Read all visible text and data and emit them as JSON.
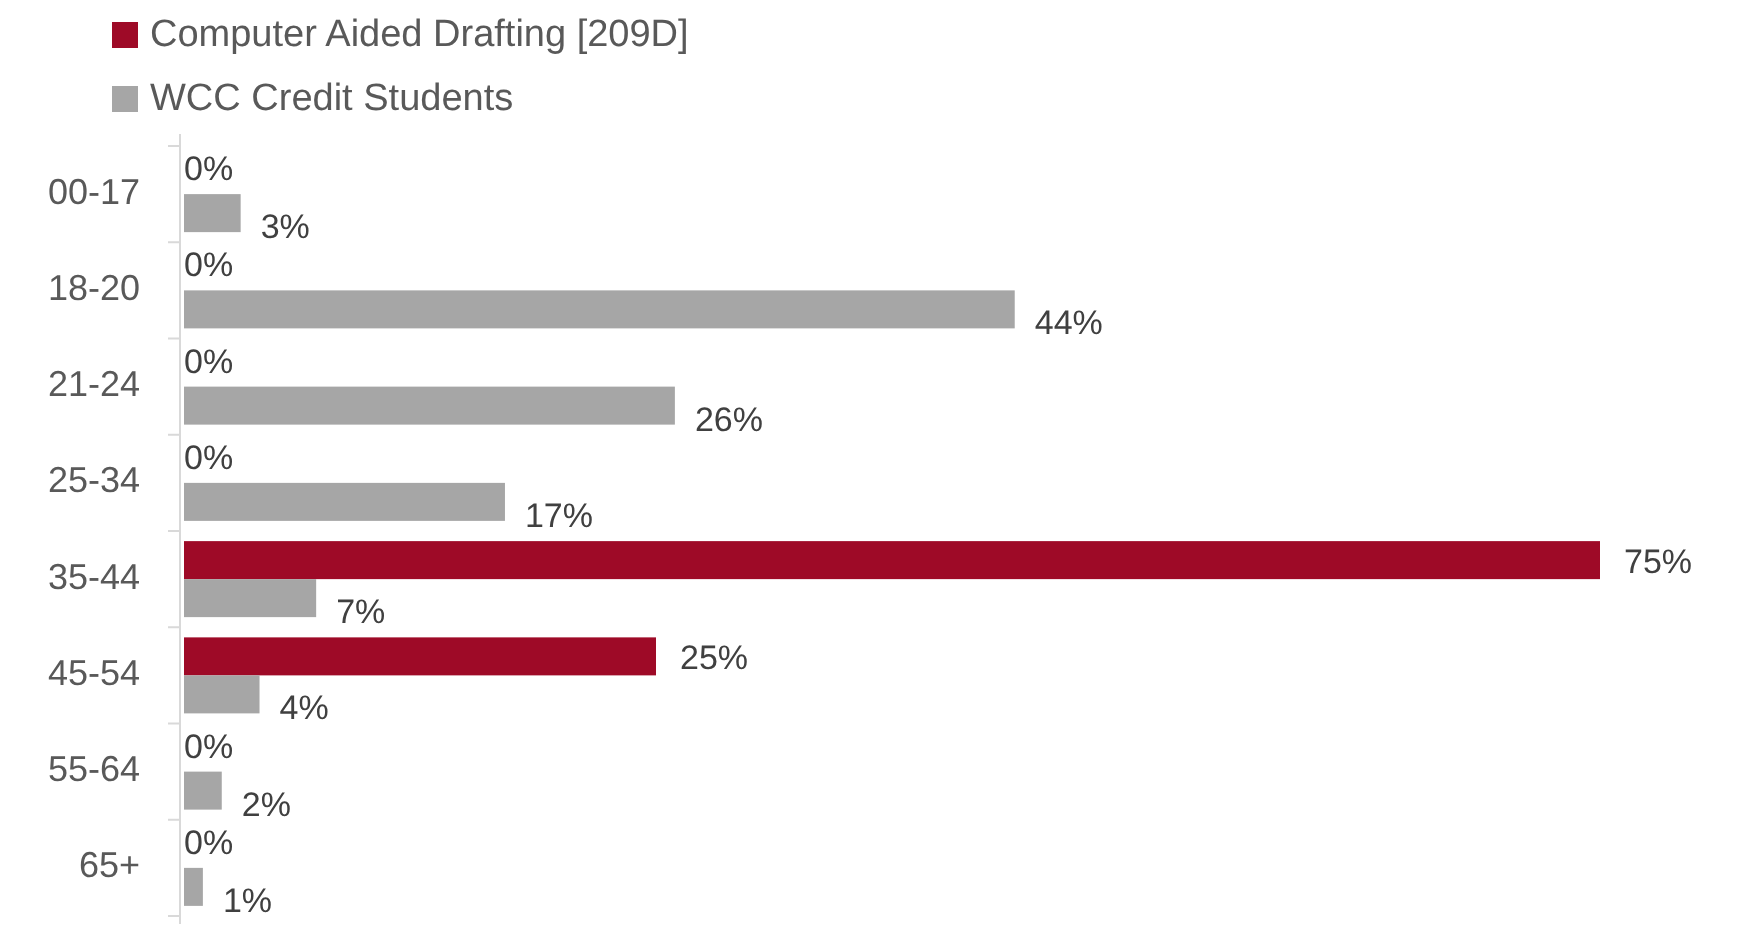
{
  "chart_data": {
    "type": "bar",
    "orientation": "horizontal",
    "categories": [
      "00-17",
      "18-20",
      "21-24",
      "25-34",
      "35-44",
      "45-54",
      "55-64",
      "65+"
    ],
    "series": [
      {
        "name": "Computer Aided Drafting [209D]",
        "color": "#9e0a27",
        "values": [
          0,
          0,
          0,
          0,
          75,
          25,
          0,
          0
        ],
        "value_labels": [
          "0%",
          "0%",
          "0%",
          "0%",
          "75%",
          "25%",
          "0%",
          "0%"
        ]
      },
      {
        "name": "WCC Credit Students",
        "color": "#a6a6a6",
        "values": [
          3,
          44,
          26,
          17,
          7,
          4,
          2,
          1
        ],
        "value_labels": [
          "3%",
          "44%",
          "26%",
          "17%",
          "7%",
          "4%",
          "2%",
          "1%"
        ]
      }
    ],
    "legend": "top left",
    "grid": false
  }
}
